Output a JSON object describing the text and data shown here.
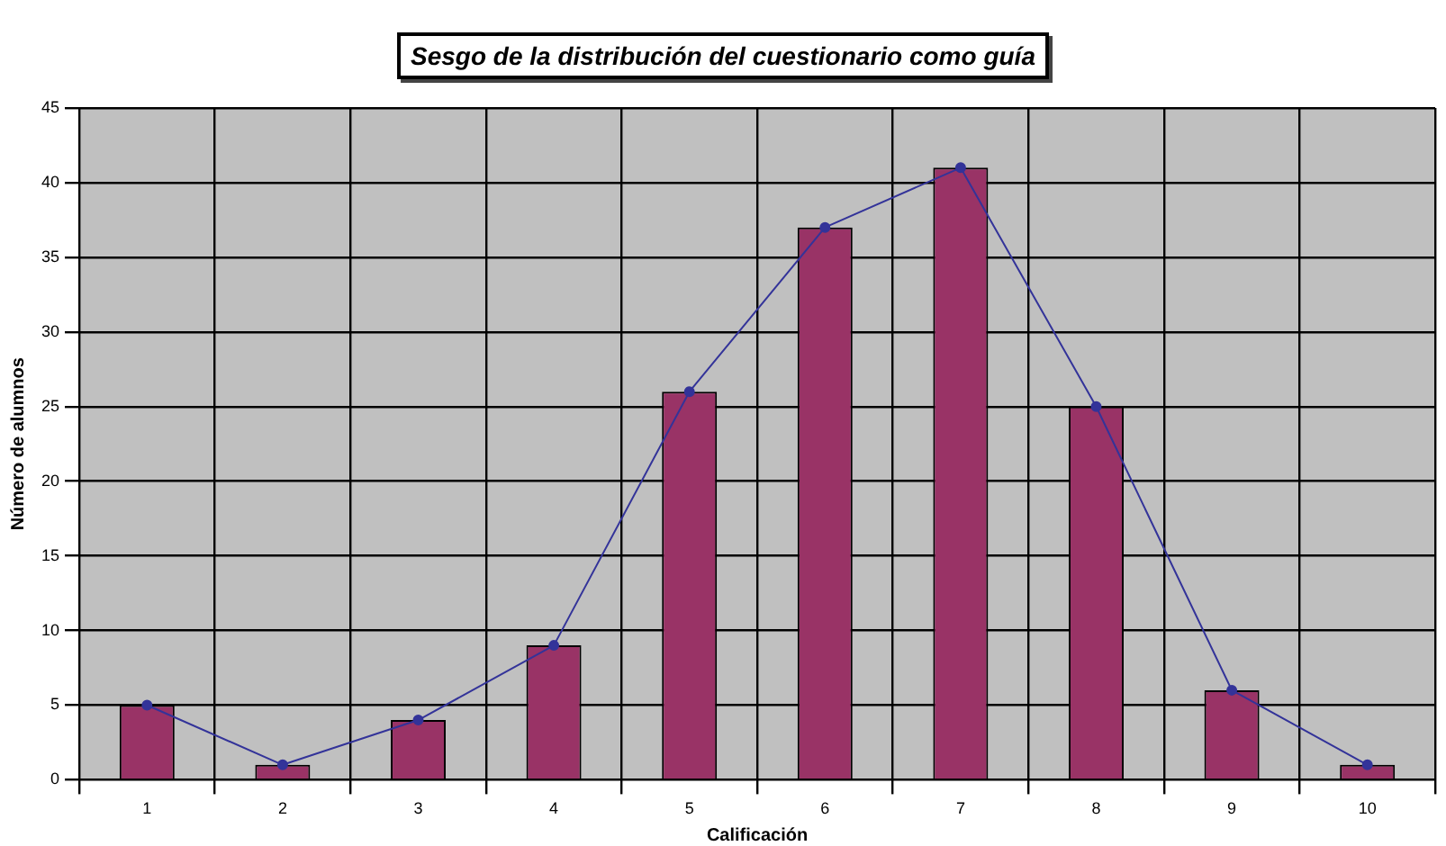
{
  "chart_data": {
    "type": "bar",
    "title": "Sesgo de la distribución del cuestionario como guía",
    "xlabel": "Calificación",
    "ylabel": "Número de alumnos",
    "categories": [
      "1",
      "2",
      "3",
      "4",
      "5",
      "6",
      "7",
      "8",
      "9",
      "10"
    ],
    "series": [
      {
        "color": "#993366",
        "values": [
          5,
          1,
          4,
          9,
          26,
          37,
          41,
          25,
          6,
          1
        ]
      },
      {
        "type": "line",
        "color": "#333399",
        "values": [
          5,
          1,
          4,
          9,
          26,
          37,
          41,
          25,
          6,
          1
        ]
      }
    ],
    "ylim": [
      0,
      45
    ],
    "yticks": [
      0,
      5,
      10,
      15,
      20,
      25,
      30,
      35,
      40,
      45
    ],
    "grid": true,
    "legend": false,
    "marker": "circle",
    "line_style": "solid"
  }
}
